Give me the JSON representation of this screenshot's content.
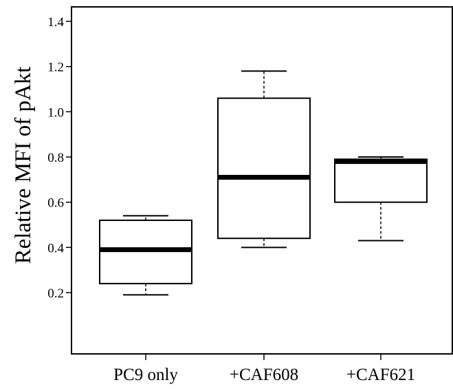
{
  "chart_data": {
    "type": "box",
    "ylabel": "Relative MFI of pAkt",
    "xlabel": "",
    "ylim": [
      0.0,
      1.44
    ],
    "yticks": [
      0.2,
      0.4,
      0.6,
      0.8,
      1.0,
      1.2,
      1.4
    ],
    "ytick_labels": [
      "0.2",
      "0.4",
      "0.6",
      "0.8",
      "1.0",
      "1.2",
      "1.4"
    ],
    "grid": false,
    "categories": [
      "PC9 only",
      "+CAF608",
      "+CAF621"
    ],
    "boxes": [
      {
        "category": "PC9 only",
        "whisker_low": 0.19,
        "q1": 0.24,
        "median": 0.39,
        "q3": 0.52,
        "whisker_high": 0.54
      },
      {
        "category": "+CAF608",
        "whisker_low": 0.4,
        "q1": 0.44,
        "median": 0.71,
        "q3": 1.06,
        "whisker_high": 1.18
      },
      {
        "category": "+CAF621",
        "whisker_low": 0.43,
        "q1": 0.6,
        "median": 0.78,
        "q3": 0.79,
        "whisker_high": 0.8
      }
    ],
    "colors": {
      "stroke": "#000000",
      "fill": "#ffffff"
    }
  }
}
